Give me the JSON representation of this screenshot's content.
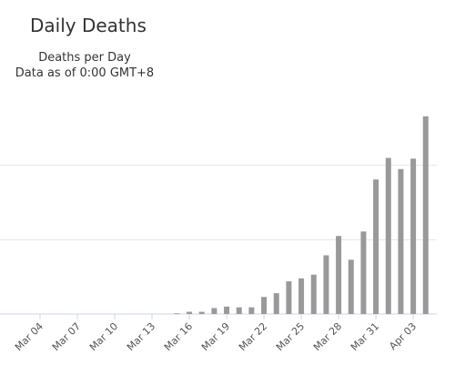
{
  "chart_data": {
    "type": "bar",
    "title": "Daily Deaths",
    "subtitle": [
      "Deaths per Day",
      "Data as of 0:00 GMT+8"
    ],
    "categories": [
      null,
      null,
      null,
      "Mar 04",
      null,
      null,
      "Mar 07",
      null,
      null,
      "Mar 10",
      null,
      null,
      "Mar 13",
      null,
      null,
      "Mar 16",
      null,
      null,
      "Mar 19",
      null,
      null,
      "Mar 22",
      null,
      null,
      "Mar 25",
      null,
      null,
      "Mar 28",
      null,
      null,
      "Mar 31",
      null,
      null,
      "Apr 03",
      null
    ],
    "values": [
      0,
      0,
      0,
      0,
      0,
      0,
      0,
      0,
      0,
      0,
      0,
      0,
      0,
      0,
      1,
      3,
      3,
      8,
      10,
      9,
      9,
      23,
      28,
      44,
      48,
      53,
      79,
      105,
      73,
      111,
      181,
      210,
      195,
      209,
      266
    ],
    "color": "#999999",
    "ylim": [
      0,
      300
    ],
    "yticks": [
      0,
      100,
      200
    ],
    "grid": true
  }
}
